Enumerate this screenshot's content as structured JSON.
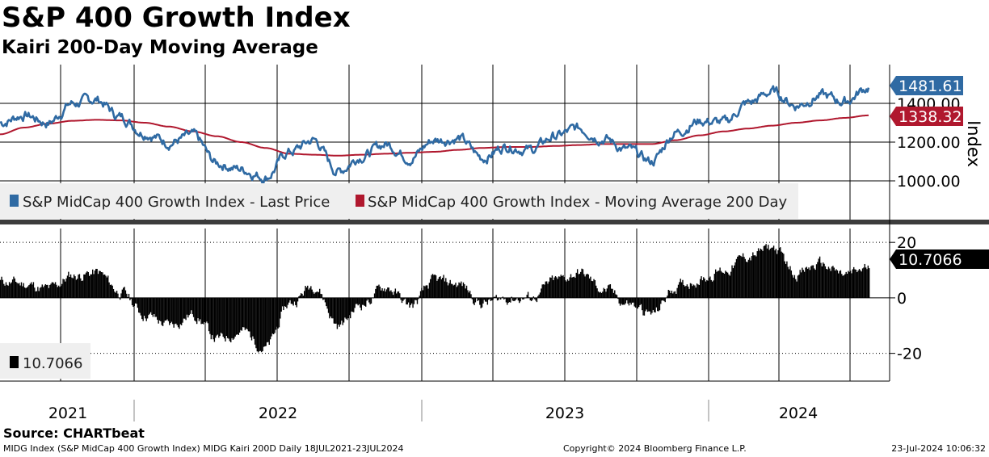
{
  "title": "S&P 400 Growth Index",
  "subtitle": "Kairi 200-Day Moving Average",
  "source": "Source: CHARTbeat",
  "footer": {
    "left": "MIDG Index (S&P MidCap 400 Growth Index) MIDG Kairi 200D  Daily 18JUL2021-23JUL2024",
    "middle": "Copyright© 2024 Bloomberg Finance L.P.",
    "right": "23-Jul-2024 10:06:32"
  },
  "colors": {
    "price": "#2f6aa3",
    "ma": "#b0182e",
    "kairi": "#000000",
    "grid": "#000000",
    "legend_bg": "#efefef",
    "separator": "#3c3c3c"
  },
  "chart_data": [
    {
      "type": "line",
      "title": "S&P MidCap 400 Growth Index",
      "ylabel": "Index",
      "ylim": [
        800,
        1600
      ],
      "y_ticks": [
        1000,
        1200,
        1400
      ],
      "y_tick_labels": [
        "1000.00",
        "1200.00",
        "1400.00"
      ],
      "x": [
        "2021-07",
        "2021-08",
        "2021-09",
        "2021-10",
        "2021-11",
        "2021-12",
        "2022-01",
        "2022-02",
        "2022-03",
        "2022-04",
        "2022-05",
        "2022-06",
        "2022-07",
        "2022-08",
        "2022-09",
        "2022-10",
        "2022-11",
        "2022-12",
        "2023-01",
        "2023-02",
        "2023-03",
        "2023-04",
        "2023-05",
        "2023-06",
        "2023-07",
        "2023-08",
        "2023-09",
        "2023-10",
        "2023-11",
        "2023-12",
        "2024-01",
        "2024-02",
        "2024-03",
        "2024-04",
        "2024-05",
        "2024-06",
        "2024-07"
      ],
      "series": [
        {
          "name": "S&P MidCap 400 Growth Index - Last Price",
          "color": "#2f6aa3",
          "last_value": 1481.61,
          "last_label": "1481.61",
          "values": [
            1300,
            1340,
            1300,
            1400,
            1420,
            1330,
            1250,
            1200,
            1230,
            1090,
            1060,
            1020,
            1150,
            1210,
            1050,
            1130,
            1190,
            1120,
            1210,
            1220,
            1120,
            1180,
            1160,
            1230,
            1270,
            1220,
            1160,
            1100,
            1250,
            1310,
            1300,
            1400,
            1460,
            1390,
            1440,
            1410,
            1481
          ]
        },
        {
          "name": "S&P MidCap 400 Growth Index - Moving Average 200 Day",
          "color": "#b0182e",
          "last_value": 1338.32,
          "last_label": "1338.32",
          "values": [
            1240,
            1275,
            1295,
            1310,
            1315,
            1312,
            1300,
            1280,
            1255,
            1230,
            1200,
            1170,
            1140,
            1135,
            1130,
            1135,
            1140,
            1145,
            1150,
            1160,
            1170,
            1175,
            1175,
            1180,
            1185,
            1190,
            1190,
            1190,
            1210,
            1235,
            1255,
            1270,
            1285,
            1300,
            1312,
            1325,
            1338
          ]
        }
      ],
      "legend": [
        "S&P MidCap 400 Growth Index - Last Price",
        "S&P MidCap 400 Growth Index - Moving Average 200 Day"
      ]
    },
    {
      "type": "area",
      "title": "Kairi 200D",
      "ylim": [
        -30,
        25
      ],
      "y_ticks": [
        20,
        0,
        -20
      ],
      "y_tick_labels": [
        "20",
        "0",
        "-20"
      ],
      "x": [
        "2021-07",
        "2021-08",
        "2021-09",
        "2021-10",
        "2021-11",
        "2021-12",
        "2022-01",
        "2022-02",
        "2022-03",
        "2022-04",
        "2022-05",
        "2022-06",
        "2022-07",
        "2022-08",
        "2022-09",
        "2022-10",
        "2022-11",
        "2022-12",
        "2023-01",
        "2023-02",
        "2023-03",
        "2023-04",
        "2023-05",
        "2023-06",
        "2023-07",
        "2023-08",
        "2023-09",
        "2023-10",
        "2023-11",
        "2023-12",
        "2024-01",
        "2024-02",
        "2024-03",
        "2024-04",
        "2024-05",
        "2024-06",
        "2024-07"
      ],
      "series": [
        {
          "name": "Kairi 200D",
          "color": "#000000",
          "last_value": 10.7066,
          "last_label": "10.7066",
          "values": [
            6,
            5,
            3,
            8,
            9,
            2,
            -6,
            -10,
            -6,
            -15,
            -12,
            -18,
            -2,
            5,
            -10,
            -2,
            4,
            -3,
            6,
            5,
            -2,
            0,
            0,
            6,
            9,
            3,
            -2,
            -6,
            4,
            7,
            10,
            15,
            18,
            9,
            12,
            8,
            10.7066
          ]
        }
      ],
      "legend": [
        "10.7066"
      ]
    }
  ],
  "x_axis": {
    "years": [
      "2021",
      "2022",
      "2023",
      "2024"
    ]
  }
}
